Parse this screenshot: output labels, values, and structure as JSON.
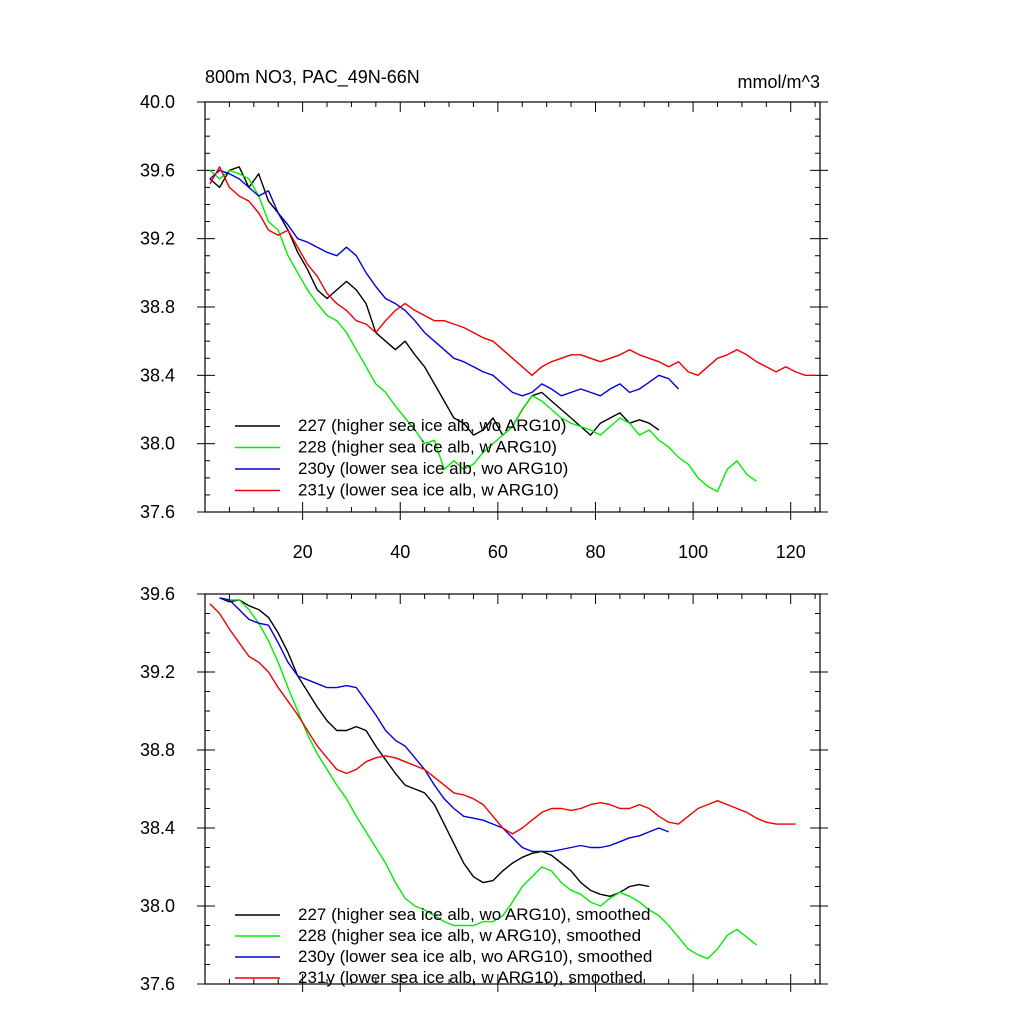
{
  "chart_data": [
    {
      "type": "line",
      "title": "800m NO3, PAC_49N-66N",
      "units": "mmol/m^3",
      "xlim": [
        0,
        126
      ],
      "ylim": [
        37.6,
        40.0
      ],
      "xticks": [
        20,
        40,
        60,
        80,
        100,
        120
      ],
      "yticks": [
        37.6,
        38.0,
        38.4,
        38.8,
        39.2,
        39.6,
        40.0
      ],
      "yticklabels": [
        "37.6",
        "38.0",
        "38.4",
        "38.8",
        "39.2",
        "39.6",
        "40.0"
      ],
      "legend": "bottom-left",
      "series": [
        {
          "name": "227 (higher sea ice alb, wo ARG10)",
          "color": "#000000",
          "x": [
            1,
            3,
            5,
            7,
            9,
            11,
            13,
            15,
            17,
            19,
            21,
            23,
            25,
            27,
            29,
            31,
            33,
            35,
            37,
            39,
            41,
            43,
            45,
            47,
            49,
            51,
            53,
            55,
            57,
            59,
            61,
            63,
            65,
            67,
            69,
            71,
            73,
            75,
            77,
            79,
            81,
            83,
            85,
            87,
            89,
            91,
            93
          ],
          "y": [
            39.55,
            39.5,
            39.6,
            39.62,
            39.5,
            39.58,
            39.42,
            39.35,
            39.25,
            39.12,
            39.02,
            38.9,
            38.85,
            38.9,
            38.95,
            38.9,
            38.82,
            38.65,
            38.6,
            38.55,
            38.6,
            38.52,
            38.45,
            38.35,
            38.25,
            38.15,
            38.12,
            38.05,
            38.08,
            38.15,
            38.05,
            38.1,
            38.2,
            38.28,
            38.3,
            38.25,
            38.2,
            38.15,
            38.1,
            38.05,
            38.12,
            38.15,
            38.18,
            38.12,
            38.14,
            38.12,
            38.08
          ]
        },
        {
          "name": "228 (higher sea ice alb, w ARG10)",
          "color": "#00ee00",
          "x": [
            1,
            3,
            5,
            7,
            9,
            11,
            13,
            15,
            17,
            19,
            21,
            23,
            25,
            27,
            29,
            31,
            33,
            35,
            37,
            39,
            41,
            43,
            45,
            47,
            49,
            51,
            53,
            55,
            57,
            59,
            61,
            63,
            65,
            67,
            69,
            71,
            73,
            75,
            77,
            79,
            81,
            83,
            85,
            87,
            89,
            91,
            93,
            95,
            97,
            99,
            101,
            103,
            105,
            107,
            109,
            111,
            113
          ],
          "y": [
            39.6,
            39.55,
            39.6,
            39.58,
            39.55,
            39.45,
            39.3,
            39.25,
            39.1,
            39.0,
            38.9,
            38.82,
            38.75,
            38.72,
            38.65,
            38.55,
            38.45,
            38.35,
            38.3,
            38.22,
            38.15,
            38.08,
            38.0,
            38.02,
            37.85,
            37.9,
            37.85,
            37.88,
            37.95,
            38.0,
            38.05,
            38.1,
            38.2,
            38.28,
            38.25,
            38.2,
            38.15,
            38.12,
            38.1,
            38.08,
            38.05,
            38.1,
            38.15,
            38.12,
            38.05,
            38.08,
            38.02,
            37.98,
            37.92,
            37.88,
            37.8,
            37.75,
            37.72,
            37.85,
            37.9,
            37.82,
            37.78
          ]
        },
        {
          "name": "230y (lower sea ice alb, wo ARG10)",
          "color": "#0000dd",
          "x": [
            1,
            3,
            5,
            7,
            9,
            11,
            13,
            15,
            17,
            19,
            21,
            23,
            25,
            27,
            29,
            31,
            33,
            35,
            37,
            39,
            41,
            43,
            45,
            47,
            49,
            51,
            53,
            55,
            57,
            59,
            61,
            63,
            65,
            67,
            69,
            71,
            73,
            75,
            77,
            79,
            81,
            83,
            85,
            87,
            89,
            91,
            93,
            95,
            97
          ],
          "y": [
            39.55,
            39.6,
            39.58,
            39.55,
            39.5,
            39.45,
            39.48,
            39.35,
            39.28,
            39.2,
            39.18,
            39.15,
            39.12,
            39.1,
            39.15,
            39.1,
            39.0,
            38.92,
            38.85,
            38.82,
            38.78,
            38.72,
            38.65,
            38.6,
            38.55,
            38.5,
            38.48,
            38.45,
            38.42,
            38.4,
            38.35,
            38.3,
            38.28,
            38.3,
            38.35,
            38.32,
            38.28,
            38.3,
            38.32,
            38.3,
            38.28,
            38.32,
            38.35,
            38.3,
            38.32,
            38.36,
            38.4,
            38.38,
            38.32
          ]
        },
        {
          "name": "231y (lower sea ice alb, w ARG10)",
          "color": "#ee0000",
          "x": [
            1,
            3,
            5,
            7,
            9,
            11,
            13,
            15,
            17,
            19,
            21,
            23,
            25,
            27,
            29,
            31,
            33,
            35,
            37,
            39,
            41,
            43,
            45,
            47,
            49,
            51,
            53,
            55,
            57,
            59,
            61,
            63,
            65,
            67,
            69,
            71,
            73,
            75,
            77,
            79,
            81,
            83,
            85,
            87,
            89,
            91,
            93,
            95,
            97,
            99,
            101,
            103,
            105,
            107,
            109,
            111,
            113,
            115,
            117,
            119,
            121,
            123,
            125
          ],
          "y": [
            39.52,
            39.62,
            39.5,
            39.45,
            39.42,
            39.35,
            39.25,
            39.22,
            39.25,
            39.15,
            39.05,
            38.98,
            38.88,
            38.82,
            38.78,
            38.72,
            38.7,
            38.65,
            38.72,
            38.78,
            38.82,
            38.78,
            38.75,
            38.72,
            38.72,
            38.7,
            38.68,
            38.65,
            38.62,
            38.6,
            38.55,
            38.5,
            38.45,
            38.4,
            38.45,
            38.48,
            38.5,
            38.52,
            38.52,
            38.5,
            38.48,
            38.5,
            38.52,
            38.55,
            38.52,
            38.5,
            38.48,
            38.45,
            38.48,
            38.42,
            38.4,
            38.45,
            38.5,
            38.52,
            38.55,
            38.52,
            38.48,
            38.45,
            38.42,
            38.45,
            38.42,
            38.4,
            38.4
          ]
        }
      ]
    },
    {
      "type": "line",
      "xlim": [
        0,
        126
      ],
      "ylim": [
        37.6,
        39.6
      ],
      "xticks": [
        20,
        40,
        60,
        80,
        100,
        120
      ],
      "yticks": [
        37.6,
        38.0,
        38.4,
        38.8,
        39.2,
        39.6
      ],
      "yticklabels": [
        "37.6",
        "38.0",
        "38.4",
        "38.8",
        "39.2",
        "39.6"
      ],
      "legend": "bottom-left",
      "series": [
        {
          "name": "227 (higher sea ice alb, wo ARG10), smoothed",
          "color": "#000000",
          "x": [
            3,
            5,
            7,
            9,
            11,
            13,
            15,
            17,
            19,
            21,
            23,
            25,
            27,
            29,
            31,
            33,
            35,
            37,
            39,
            41,
            43,
            45,
            47,
            49,
            51,
            53,
            55,
            57,
            59,
            61,
            63,
            65,
            67,
            69,
            71,
            73,
            75,
            77,
            79,
            81,
            83,
            85,
            87,
            89,
            91
          ],
          "y": [
            39.58,
            39.56,
            39.57,
            39.54,
            39.52,
            39.48,
            39.4,
            39.3,
            39.18,
            39.1,
            39.02,
            38.95,
            38.9,
            38.9,
            38.92,
            38.9,
            38.82,
            38.75,
            38.68,
            38.62,
            38.6,
            38.58,
            38.52,
            38.42,
            38.32,
            38.22,
            38.15,
            38.12,
            38.13,
            38.18,
            38.22,
            38.25,
            38.27,
            38.28,
            38.26,
            38.22,
            38.18,
            38.12,
            38.08,
            38.06,
            38.05,
            38.07,
            38.1,
            38.11,
            38.1
          ]
        },
        {
          "name": "228 (higher sea ice alb, w ARG10), smoothed",
          "color": "#00ee00",
          "x": [
            3,
            5,
            7,
            9,
            11,
            13,
            15,
            17,
            19,
            21,
            23,
            25,
            27,
            29,
            31,
            33,
            35,
            37,
            39,
            41,
            43,
            45,
            47,
            49,
            51,
            53,
            55,
            57,
            59,
            61,
            63,
            65,
            67,
            69,
            71,
            73,
            75,
            77,
            79,
            81,
            83,
            85,
            87,
            89,
            91,
            93,
            95,
            97,
            99,
            101,
            103,
            105,
            107,
            109,
            111,
            113
          ],
          "y": [
            39.58,
            39.57,
            39.57,
            39.52,
            39.45,
            39.36,
            39.25,
            39.12,
            39.0,
            38.88,
            38.78,
            38.7,
            38.62,
            38.55,
            38.46,
            38.38,
            38.3,
            38.22,
            38.12,
            38.04,
            38.0,
            37.98,
            37.95,
            37.92,
            37.9,
            37.9,
            37.9,
            37.92,
            37.92,
            37.95,
            38.02,
            38.1,
            38.15,
            38.2,
            38.18,
            38.12,
            38.08,
            38.06,
            38.02,
            38.0,
            38.04,
            38.07,
            38.05,
            38.02,
            37.98,
            37.95,
            37.9,
            37.84,
            37.78,
            37.75,
            37.73,
            37.78,
            37.85,
            37.88,
            37.84,
            37.8
          ]
        },
        {
          "name": "230y (lower sea ice alb, wo ARG10), smoothed",
          "color": "#0000dd",
          "x": [
            3,
            5,
            7,
            9,
            11,
            13,
            15,
            17,
            19,
            21,
            23,
            25,
            27,
            29,
            31,
            33,
            35,
            37,
            39,
            41,
            43,
            45,
            47,
            49,
            51,
            53,
            55,
            57,
            59,
            61,
            63,
            65,
            67,
            69,
            71,
            73,
            75,
            77,
            79,
            81,
            83,
            85,
            87,
            89,
            91,
            93,
            95
          ],
          "y": [
            39.58,
            39.57,
            39.52,
            39.47,
            39.45,
            39.44,
            39.35,
            39.25,
            39.18,
            39.16,
            39.14,
            39.12,
            39.12,
            39.13,
            39.12,
            39.05,
            38.98,
            38.9,
            38.85,
            38.82,
            38.76,
            38.7,
            38.62,
            38.55,
            38.5,
            38.46,
            38.45,
            38.44,
            38.42,
            38.4,
            38.35,
            38.3,
            38.28,
            38.28,
            38.28,
            38.29,
            38.3,
            38.31,
            38.3,
            38.3,
            38.31,
            38.33,
            38.35,
            38.36,
            38.38,
            38.4,
            38.38
          ]
        },
        {
          "name": "231y (lower sea ice alb, w ARG10), smoothed",
          "color": "#ee0000",
          "x": [
            1,
            3,
            5,
            7,
            9,
            11,
            13,
            15,
            17,
            19,
            21,
            23,
            25,
            27,
            29,
            31,
            33,
            35,
            37,
            39,
            41,
            43,
            45,
            47,
            49,
            51,
            53,
            55,
            57,
            59,
            61,
            63,
            65,
            67,
            69,
            71,
            73,
            75,
            77,
            79,
            81,
            83,
            85,
            87,
            89,
            91,
            93,
            95,
            97,
            99,
            101,
            103,
            105,
            107,
            109,
            111,
            113,
            115,
            117,
            119,
            121
          ],
          "y": [
            39.55,
            39.5,
            39.42,
            39.35,
            39.28,
            39.25,
            39.2,
            39.12,
            39.05,
            38.98,
            38.9,
            38.82,
            38.76,
            38.7,
            38.68,
            38.7,
            38.74,
            38.76,
            38.77,
            38.76,
            38.74,
            38.72,
            38.7,
            38.66,
            38.62,
            38.58,
            38.57,
            38.55,
            38.52,
            38.46,
            38.4,
            38.37,
            38.4,
            38.44,
            38.48,
            38.5,
            38.5,
            38.49,
            38.5,
            38.52,
            38.53,
            38.52,
            38.5,
            38.5,
            38.52,
            38.5,
            38.46,
            38.43,
            38.42,
            38.46,
            38.5,
            38.52,
            38.54,
            38.52,
            38.5,
            38.48,
            38.45,
            38.43,
            38.42,
            38.42,
            38.42
          ]
        }
      ]
    }
  ]
}
